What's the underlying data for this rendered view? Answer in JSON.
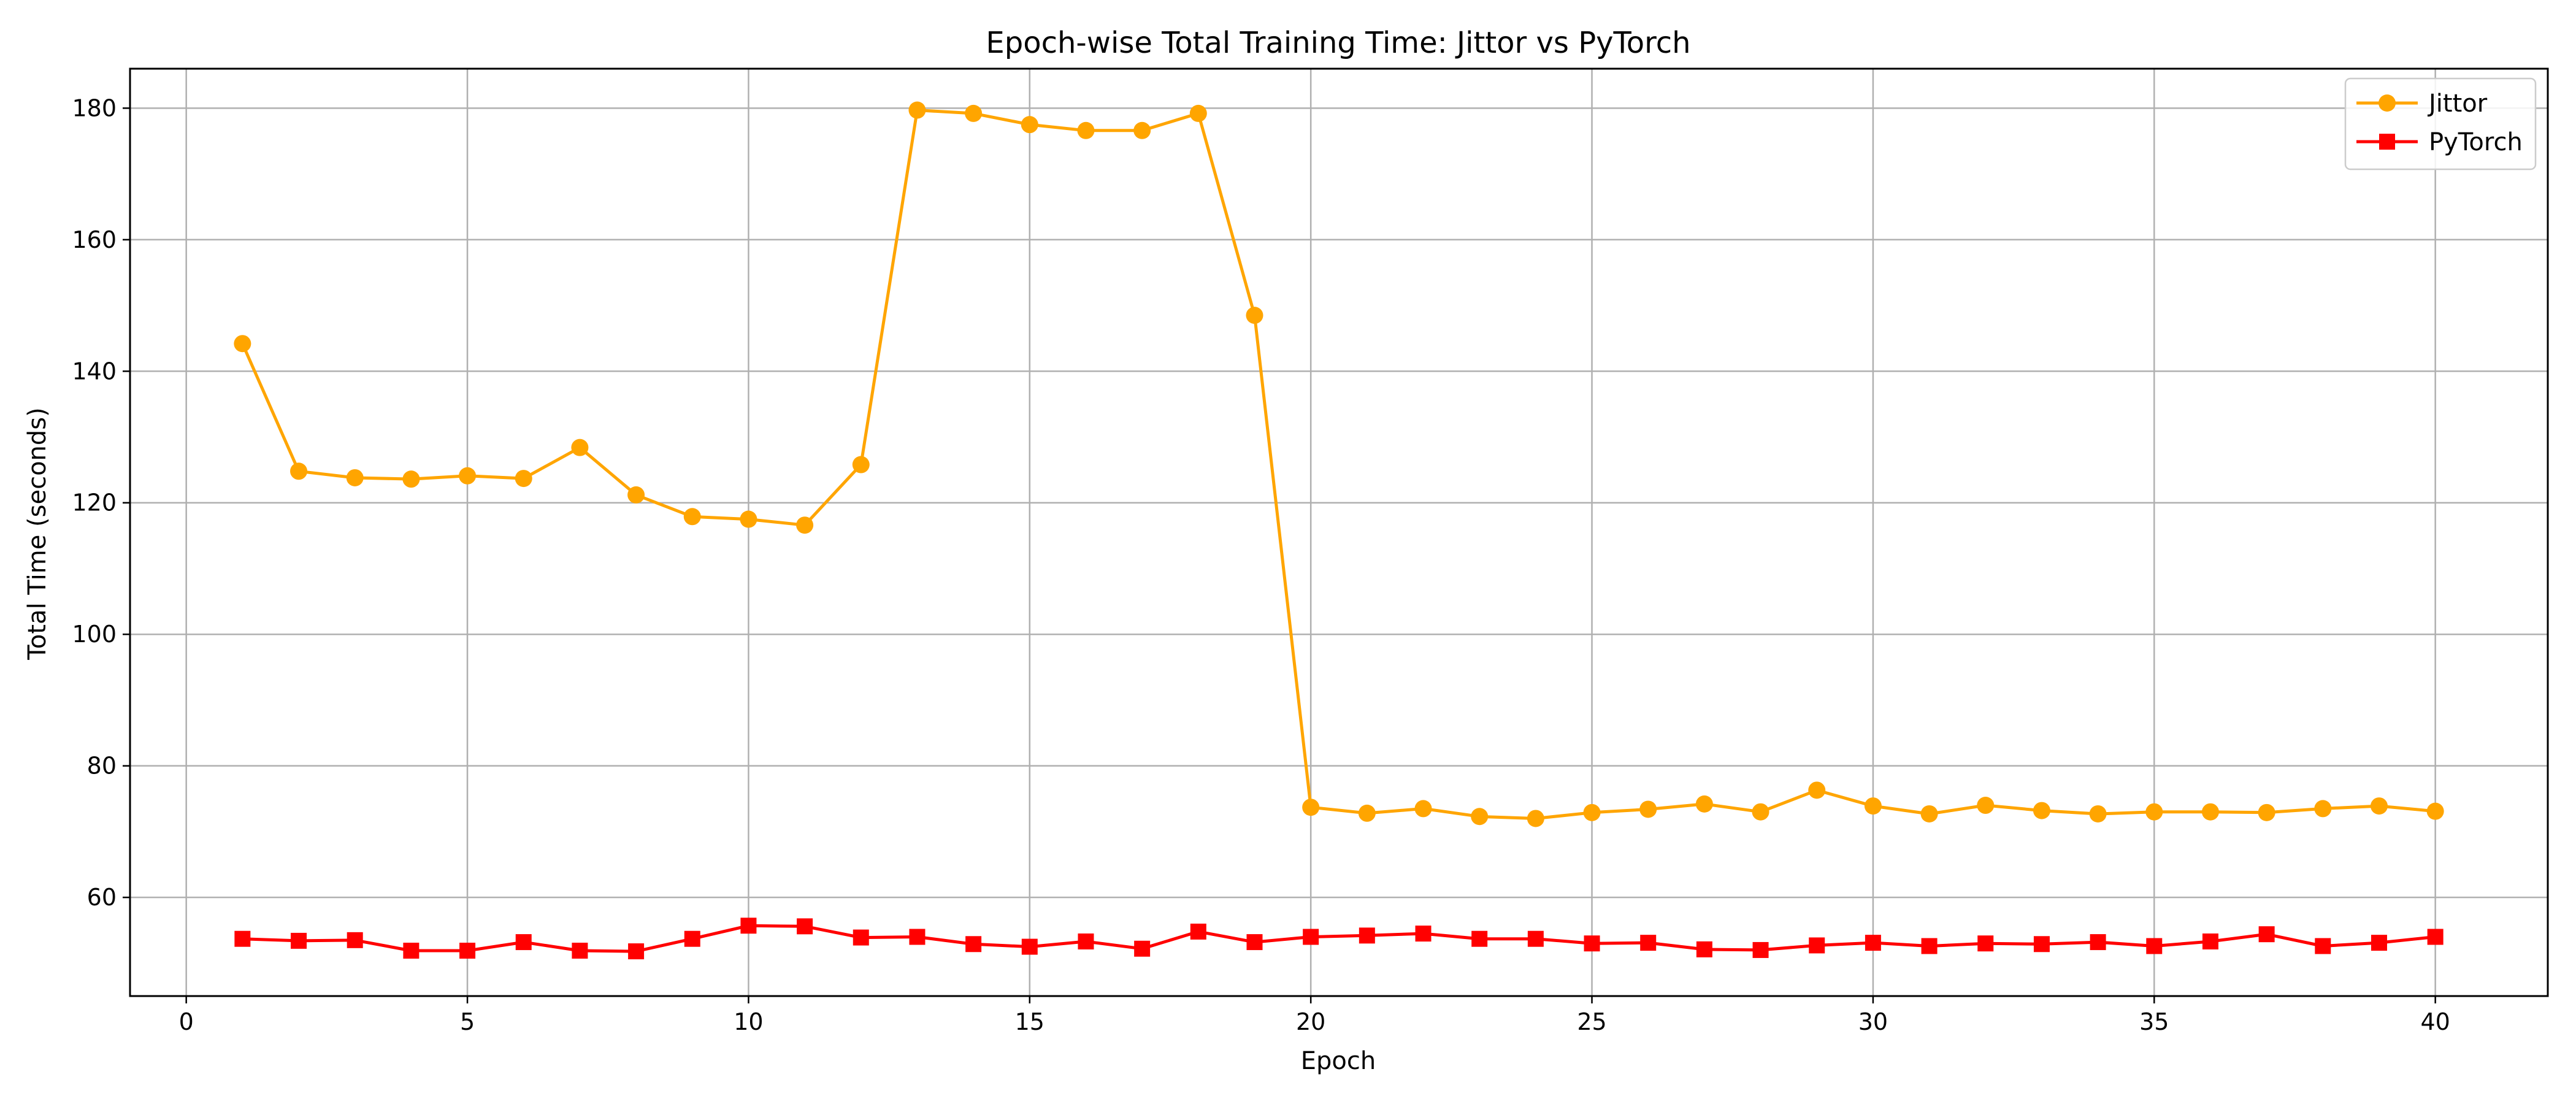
{
  "chart_data": {
    "type": "line",
    "title": "Epoch-wise Total Training Time: Jittor vs PyTorch",
    "xlabel": "Epoch",
    "ylabel": "Total Time (seconds)",
    "xlim": [
      -1,
      42
    ],
    "ylim": [
      45,
      186
    ],
    "xticks": [
      0,
      5,
      10,
      15,
      20,
      25,
      30,
      35,
      40
    ],
    "yticks": [
      60,
      80,
      100,
      120,
      140,
      160,
      180
    ],
    "grid": true,
    "legend_position": "top-right",
    "x": [
      1,
      2,
      3,
      4,
      5,
      6,
      7,
      8,
      9,
      10,
      11,
      12,
      13,
      14,
      15,
      16,
      17,
      18,
      19,
      20,
      21,
      22,
      23,
      24,
      25,
      26,
      27,
      28,
      29,
      30,
      31,
      32,
      33,
      34,
      35,
      36,
      37,
      38,
      39,
      40
    ],
    "series": [
      {
        "name": "Jittor",
        "color": "#FFA500",
        "marker": "circle",
        "values": [
          144.2,
          124.8,
          123.8,
          123.6,
          124.1,
          123.7,
          128.4,
          121.2,
          117.9,
          117.5,
          116.6,
          125.8,
          179.7,
          179.2,
          177.5,
          176.6,
          176.6,
          179.2,
          148.5,
          73.7,
          72.8,
          73.5,
          72.3,
          72.0,
          72.9,
          73.4,
          74.2,
          73.0,
          76.3,
          73.9,
          72.7,
          74.0,
          73.2,
          72.7,
          73.0,
          73.0,
          72.9,
          73.5,
          73.9,
          73.1
        ]
      },
      {
        "name": "PyTorch",
        "color": "#FF0000",
        "marker": "square",
        "values": [
          53.7,
          53.4,
          53.5,
          51.9,
          51.9,
          53.2,
          51.9,
          51.8,
          53.7,
          55.7,
          55.6,
          53.9,
          54.0,
          52.9,
          52.5,
          53.3,
          52.2,
          54.8,
          53.2,
          54.0,
          54.2,
          54.5,
          53.7,
          53.7,
          53.0,
          53.1,
          52.1,
          52.0,
          52.7,
          53.1,
          52.6,
          53.0,
          52.9,
          53.2,
          52.6,
          53.3,
          54.4,
          52.6,
          53.1,
          54.0
        ]
      }
    ]
  }
}
